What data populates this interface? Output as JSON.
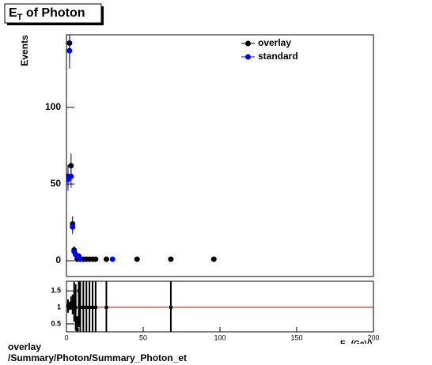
{
  "title": {
    "main": "E",
    "sub": "T",
    "rest": " of Photon"
  },
  "footer": [
    "overlay",
    "/Summary/Photon/Summary_Photon_et"
  ],
  "chart_data": [
    {
      "type": "scatter",
      "y_label": "Events",
      "xlim": [
        0,
        200
      ],
      "ylim": [
        -10.3,
        147.4
      ],
      "yticks": [
        0,
        50,
        100
      ],
      "legend": "top-right",
      "series": [
        {
          "name": "overlay",
          "color": "#000000",
          "x": [
            1,
            2,
            3,
            4,
            5,
            6,
            7,
            8,
            9,
            11,
            13,
            15,
            17,
            19,
            26,
            46,
            68,
            96
          ],
          "values": [
            55,
            142,
            62,
            24,
            7,
            4,
            1,
            3,
            1,
            1,
            1,
            1,
            1,
            1,
            1,
            1,
            1,
            1
          ],
          "errors": [
            7.4,
            11.9,
            7.9,
            4.9,
            2.6,
            2,
            1,
            1.7,
            1,
            1,
            1,
            1,
            1,
            1,
            1,
            1,
            1,
            1
          ]
        },
        {
          "name": "standard",
          "color": "#0000ff",
          "x": [
            1,
            2,
            3,
            4,
            5,
            6,
            7,
            8,
            9,
            30
          ],
          "values": [
            53,
            137,
            55,
            22,
            6,
            4,
            3,
            2,
            1,
            1
          ],
          "errors": [
            7.3,
            11.7,
            7.4,
            4.7,
            2.4,
            2,
            1.7,
            1.4,
            1,
            1
          ]
        }
      ]
    },
    {
      "type": "ratio",
      "x_label": {
        "main": "E",
        "sub": "T",
        "rest": " (GeV)"
      },
      "xlim": [
        0,
        200
      ],
      "ylim": [
        0.26,
        1.79
      ],
      "xticks": [
        0,
        50,
        100,
        150,
        200
      ],
      "yticks": [
        0.5,
        1,
        1.5
      ],
      "reference": 1,
      "reference_color": "#cc0000",
      "series": [
        {
          "color": "#000000",
          "x": [
            1,
            2,
            3,
            4,
            5,
            6,
            7,
            8,
            9,
            11,
            13,
            15,
            17,
            19,
            26,
            68
          ],
          "values": [
            1.04,
            1.04,
            1.13,
            1.09,
            1.17,
            1,
            0.33,
            1.5,
            1,
            1,
            1,
            1,
            1,
            1,
            1,
            1
          ],
          "errors": [
            0.2,
            0.12,
            0.2,
            0.3,
            0.6,
            0.7,
            0.4,
            1.1,
            1.4,
            2,
            2,
            2,
            2,
            2,
            2,
            2
          ]
        }
      ]
    }
  ]
}
